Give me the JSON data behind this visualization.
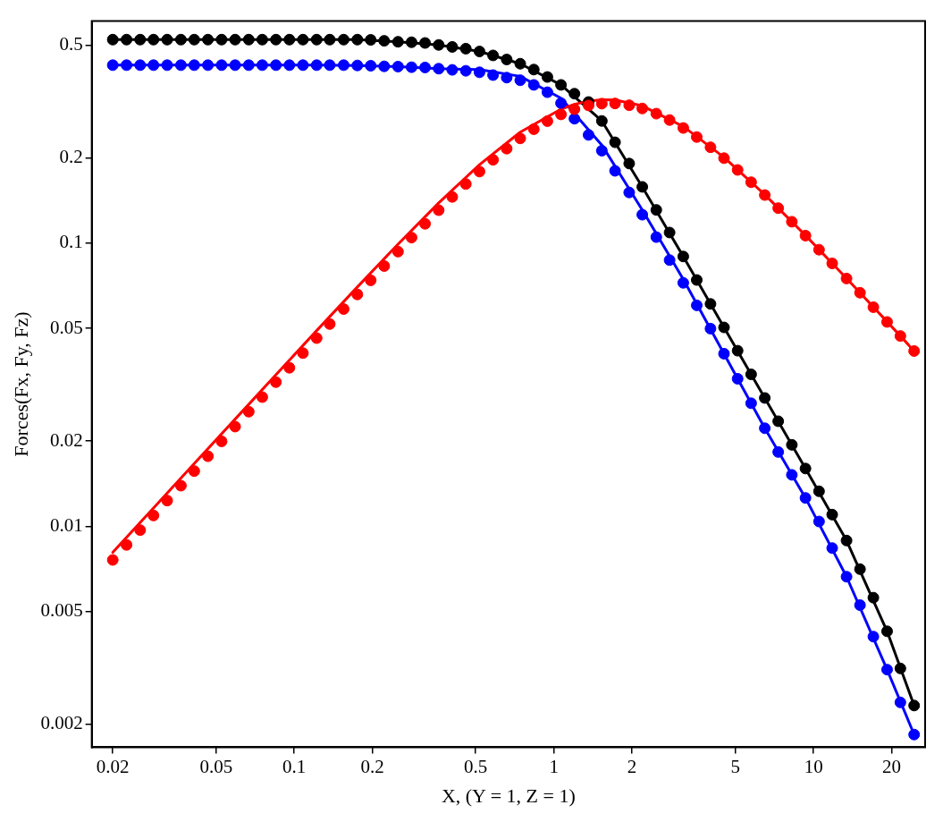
{
  "chart_data": {
    "type": "scatter",
    "xlabel": "X, (Y = 1, Z = 1)",
    "ylabel": "Forces(Fx, Fy, Fz)",
    "log": "xy",
    "grid": false,
    "legend": false,
    "marker": "circle",
    "xlim": [
      0.0166,
      26.9
    ],
    "xticks": [
      0.02,
      0.05,
      0.1,
      0.2,
      0.5,
      1,
      2,
      5,
      10,
      20
    ],
    "ylim": [
      0.00166,
      0.608
    ],
    "yticks": [
      0.002,
      0.005,
      0.01,
      0.02,
      0.05,
      0.1,
      0.2,
      0.5
    ],
    "x": [
      0.02,
      0.0226,
      0.0255,
      0.0287,
      0.0324,
      0.0366,
      0.0412,
      0.0465,
      0.0525,
      0.0592,
      0.0668,
      0.0753,
      0.085,
      0.0958,
      0.108,
      0.122,
      0.137,
      0.155,
      0.175,
      0.197,
      0.222,
      0.251,
      0.283,
      0.319,
      0.36,
      0.406,
      0.458,
      0.517,
      0.583,
      0.658,
      0.742,
      0.837,
      0.944,
      1.065,
      1.2,
      1.36,
      1.53,
      1.72,
      1.95,
      2.19,
      2.48,
      2.79,
      3.15,
      3.55,
      4.01,
      4.52,
      5.1,
      5.75,
      6.49,
      7.31,
      8.25,
      9.31,
      10.5,
      11.8,
      13.4,
      15.1,
      17.0,
      19.2,
      21.6,
      24.4
    ],
    "series": [
      {
        "type": "line",
        "marker": "none",
        "color": "#000000",
        "x": [
          0.02,
          0.0287,
          0.0412,
          0.0592,
          0.085,
          0.122,
          0.175,
          0.251,
          0.36,
          0.517,
          0.742,
          1.065,
          1.53,
          2.19,
          3.15,
          4.52,
          6.49,
          9.31,
          13.4,
          19.2,
          24.4
        ],
        "values": [
          0.523,
          0.523,
          0.523,
          0.523,
          0.523,
          0.523,
          0.523,
          0.514,
          0.501,
          0.475,
          0.43,
          0.362,
          0.27,
          0.158,
          0.0897,
          0.0504,
          0.0284,
          0.016,
          0.00891,
          0.00426,
          0.00233
        ]
      },
      {
        "type": "line",
        "marker": "none",
        "color": "#0000ff",
        "x": [
          0.02,
          0.0287,
          0.0412,
          0.0592,
          0.085,
          0.122,
          0.175,
          0.251,
          0.36,
          0.517,
          0.742,
          1.065,
          1.53,
          2.19,
          3.15,
          4.52,
          6.49,
          9.31,
          13.4,
          19.2,
          24.4
        ],
        "values": [
          0.425,
          0.425,
          0.425,
          0.425,
          0.425,
          0.425,
          0.424,
          0.42,
          0.413,
          0.41,
          0.388,
          0.325,
          0.222,
          0.131,
          0.0745,
          0.0407,
          0.0222,
          0.0126,
          0.00664,
          0.00312,
          0.00184
        ]
      },
      {
        "type": "line",
        "marker": "none",
        "color": "#ff0000",
        "x": [
          0.02,
          0.0287,
          0.0412,
          0.0592,
          0.085,
          0.122,
          0.175,
          0.251,
          0.36,
          0.517,
          0.742,
          1.065,
          1.2,
          1.36,
          1.53,
          1.72,
          2.19,
          3.15,
          4.52,
          6.49,
          9.31,
          13.4,
          19.2,
          24.4
        ],
        "values": [
          0.00809,
          0.01161,
          0.01666,
          0.0239,
          0.0343,
          0.0491,
          0.07,
          0.0991,
          0.1386,
          0.1892,
          0.2465,
          0.2973,
          0.3091,
          0.3175,
          0.3211,
          0.3202,
          0.3053,
          0.2582,
          0.2009,
          0.1483,
          0.1065,
          0.0751,
          0.0528,
          0.0416
        ]
      },
      {
        "color": "#000000",
        "values": [
          0.523,
          0.523,
          0.523,
          0.523,
          0.523,
          0.523,
          0.523,
          0.523,
          0.523,
          0.523,
          0.523,
          0.523,
          0.523,
          0.523,
          0.523,
          0.523,
          0.523,
          0.523,
          0.523,
          0.522,
          0.518,
          0.514,
          0.512,
          0.509,
          0.501,
          0.493,
          0.486,
          0.475,
          0.46,
          0.445,
          0.43,
          0.41,
          0.386,
          0.362,
          0.337,
          0.315,
          0.27,
          0.227,
          0.191,
          0.158,
          0.131,
          0.109,
          0.0897,
          0.0741,
          0.061,
          0.0504,
          0.0417,
          0.0344,
          0.0284,
          0.0235,
          0.0194,
          0.016,
          0.0133,
          0.011,
          0.00891,
          0.00706,
          0.0056,
          0.00426,
          0.00315,
          0.00233
        ]
      },
      {
        "color": "#0000ff",
        "values": [
          0.425,
          0.425,
          0.425,
          0.425,
          0.425,
          0.425,
          0.425,
          0.425,
          0.425,
          0.425,
          0.425,
          0.425,
          0.425,
          0.425,
          0.425,
          0.425,
          0.425,
          0.425,
          0.424,
          0.423,
          0.421,
          0.42,
          0.418,
          0.417,
          0.413,
          0.409,
          0.406,
          0.401,
          0.392,
          0.384,
          0.376,
          0.362,
          0.341,
          0.312,
          0.275,
          0.241,
          0.212,
          0.18,
          0.151,
          0.126,
          0.105,
          0.0871,
          0.0724,
          0.0603,
          0.0499,
          0.0407,
          0.0332,
          0.0272,
          0.0222,
          0.0183,
          0.0152,
          0.0126,
          0.0104,
          0.00838,
          0.00664,
          0.00527,
          0.00408,
          0.00312,
          0.00239,
          0.00184
        ]
      },
      {
        "color": "#ff0000",
        "values": [
          0.00761,
          0.0086,
          0.0097,
          0.01092,
          0.01233,
          0.01392,
          0.01567,
          0.01768,
          0.01996,
          0.0225,
          0.0254,
          0.0286,
          0.0323,
          0.0363,
          0.0409,
          0.0462,
          0.0518,
          0.0585,
          0.0659,
          0.0739,
          0.083,
          0.0933,
          0.1046,
          0.117,
          0.1307,
          0.1456,
          0.1617,
          0.1789,
          0.1969,
          0.2156,
          0.2343,
          0.2525,
          0.2696,
          0.2848,
          0.2971,
          0.3063,
          0.3108,
          0.3112,
          0.3068,
          0.2988,
          0.2865,
          0.272,
          0.255,
          0.2369,
          0.218,
          0.1995,
          0.1813,
          0.1641,
          0.1478,
          0.1329,
          0.119,
          0.1063,
          0.0948,
          0.0848,
          0.075,
          0.0668,
          0.0594,
          0.0527,
          0.047,
          0.0416
        ]
      }
    ]
  }
}
